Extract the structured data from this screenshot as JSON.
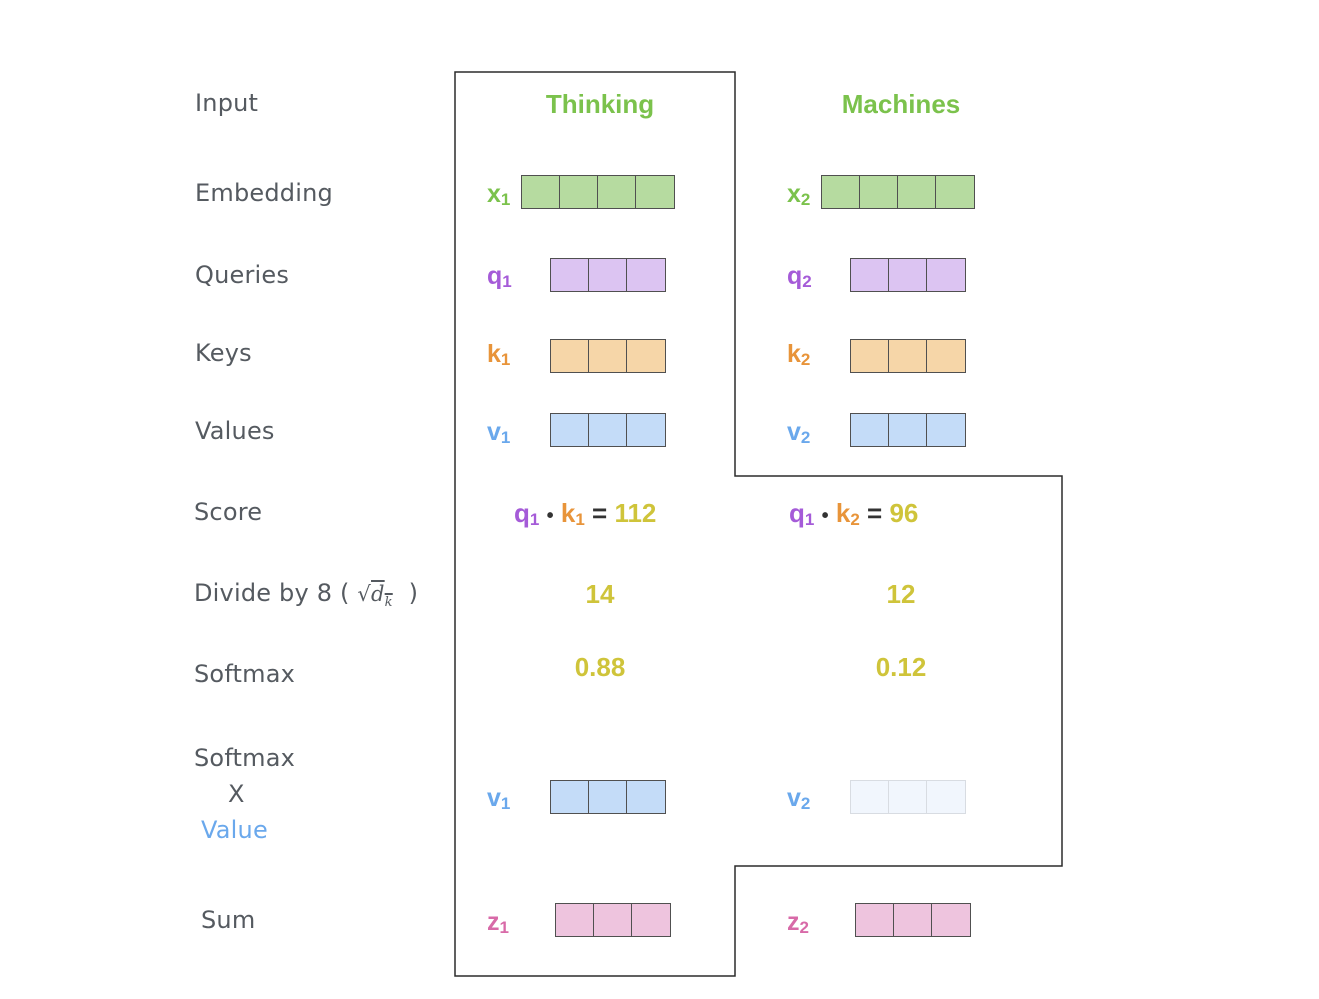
{
  "colors": {
    "word": "#7bc24c",
    "x": "#7bc24c",
    "q": "#a55bd8",
    "k": "#e8943a",
    "v": "#6aa8ec",
    "z": "#d86aa8",
    "num": "#cfc43a",
    "label": "#555a60",
    "value_label": "#6aa8ec",
    "fill_x": "#b6dba0",
    "fill_q": "#dcc4f2",
    "fill_k": "#f6d6a8",
    "fill_v": "#c4dcf8",
    "fill_v_faint": "#f1f6fd",
    "fill_z": "#eec4de"
  },
  "rows": {
    "input": "Input",
    "embedding": "Embedding",
    "queries": "Queries",
    "keys": "Keys",
    "values": "Values",
    "score": "Score",
    "divide": "Divide by 8 (",
    "divide_close": ")",
    "divide_sqrt": "d",
    "divide_sqrt_sub": "k",
    "softmax": "Softmax",
    "softmax_x_1": "Softmax",
    "softmax_x_2": "X",
    "softmax_x_3": "Value",
    "sum": "Sum"
  },
  "words": [
    "Thinking",
    "Machines"
  ],
  "vector_labels": {
    "x": [
      "x",
      "x"
    ],
    "q": [
      "q",
      "q"
    ],
    "k": [
      "k",
      "k"
    ],
    "v": [
      "v",
      "v"
    ],
    "z": [
      "z",
      "z"
    ],
    "subs": [
      "1",
      "2"
    ]
  },
  "score_terms": [
    {
      "q": "q",
      "q_sub": "1",
      "dot": "•",
      "k": "k",
      "k_sub": "1",
      "eq": "=",
      "value": "112"
    },
    {
      "q": "q",
      "q_sub": "1",
      "dot": "•",
      "k": "k",
      "k_sub": "2",
      "eq": "=",
      "value": "96"
    }
  ],
  "divided": [
    "14",
    "12"
  ],
  "softmax": [
    "0.88",
    "0.12"
  ]
}
